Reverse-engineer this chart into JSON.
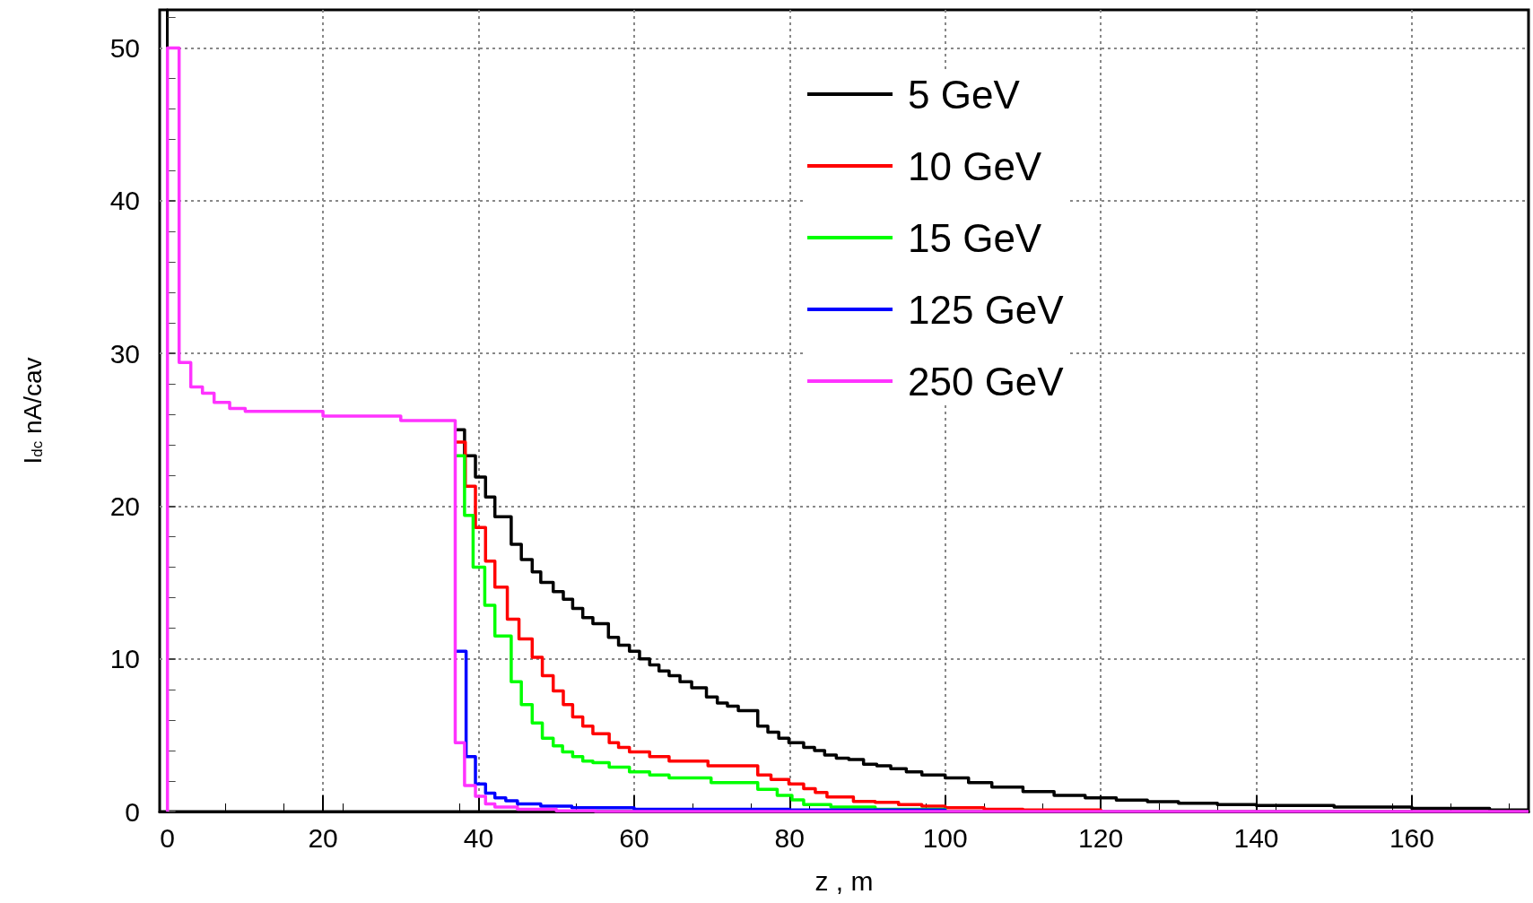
{
  "chart_data": {
    "type": "step",
    "xlabel": "z , m",
    "ylabel": "I$_{dc}$ nA/cav",
    "xlim": [
      -1,
      175
    ],
    "ylim": [
      0,
      52.5
    ],
    "xticks": [
      0,
      20,
      40,
      60,
      80,
      100,
      120,
      140,
      160
    ],
    "yticks": [
      0,
      10,
      20,
      30,
      40,
      50
    ],
    "grid": true,
    "legend": "top right",
    "series": [
      {
        "name": "5 GeV",
        "color": "#000000",
        "x": [
          37,
          38.2,
          39.6,
          40.9,
          42.1,
          44.2,
          45.5,
          46.9,
          48,
          49.6,
          50.9,
          52.1,
          53.4,
          54.7,
          56.7,
          58,
          59.4,
          60.7,
          62,
          63.2,
          64.5,
          65.9,
          67.4,
          69.3,
          70.7,
          72,
          73.4,
          75.9,
          77.2,
          78.6,
          79.9,
          81.8,
          83.2,
          84.5,
          86,
          87.6,
          89.5,
          91.2,
          93,
          95,
          97,
          100,
          103,
          106,
          110,
          114,
          118,
          122,
          126,
          130,
          135,
          140,
          150,
          160,
          170,
          175
        ],
        "values": [
          25,
          23.3,
          21.9,
          20.6,
          19.3,
          17.5,
          16.5,
          15.7,
          15,
          14.4,
          13.9,
          13.3,
          12.7,
          12.3,
          11.4,
          10.9,
          10.5,
          10,
          9.6,
          9.2,
          8.9,
          8.5,
          8.1,
          7.5,
          7.1,
          6.9,
          6.6,
          5.6,
          5.2,
          4.8,
          4.5,
          4.2,
          4,
          3.7,
          3.5,
          3.4,
          3.1,
          3,
          2.8,
          2.6,
          2.4,
          2.2,
          1.9,
          1.6,
          1.3,
          1.05,
          0.9,
          0.75,
          0.65,
          0.55,
          0.45,
          0.4,
          0.3,
          0.2,
          0.1,
          0.1
        ]
      },
      {
        "name": "10 GeV",
        "color": "#ff0000",
        "x": [
          37,
          38.3,
          39.6,
          40.9,
          42.1,
          43.7,
          45.2,
          46.9,
          48.2,
          49.6,
          50.9,
          52.1,
          53.4,
          54.7,
          56.8,
          58,
          59.4,
          62,
          64.5,
          69.5,
          75.9,
          77.6,
          79.9,
          81.8,
          83.3,
          84.8,
          88.2,
          91,
          94,
          97,
          100,
          105,
          110,
          120
        ],
        "values": [
          24.2,
          21.3,
          18.6,
          16.4,
          14.7,
          12.6,
          11.3,
          10.1,
          8.9,
          7.9,
          7,
          6.2,
          5.6,
          5.1,
          4.5,
          4.2,
          3.9,
          3.6,
          3.3,
          3,
          2.4,
          2.1,
          1.8,
          1.5,
          1.25,
          0.95,
          0.66,
          0.6,
          0.45,
          0.35,
          0.25,
          0.15,
          0.1,
          0.05
        ]
      },
      {
        "name": "15 GeV",
        "color": "#00ff00",
        "x": [
          37,
          38.2,
          39.3,
          40.8,
          42.1,
          44.2,
          45.5,
          46.9,
          48.2,
          49.6,
          50.8,
          52.1,
          53.4,
          54.7,
          56.8,
          59.4,
          62,
          64.5,
          69.9,
          75.9,
          78.4,
          80.3,
          81.8,
          85.3,
          91,
          100
        ],
        "values": [
          23.3,
          19.4,
          16,
          13.5,
          11.5,
          8.5,
          7,
          5.8,
          4.8,
          4.3,
          3.9,
          3.6,
          3.3,
          3.2,
          2.9,
          2.6,
          2.4,
          2.2,
          1.9,
          1.45,
          1.05,
          0.76,
          0.46,
          0.3,
          0.15,
          0.05
        ]
      },
      {
        "name": "125 GeV",
        "color": "#0000ff",
        "x": [
          37,
          38.4,
          39.6,
          40.9,
          42.1,
          43.5,
          45,
          48,
          52,
          60,
          80,
          100
        ],
        "values": [
          10.5,
          3.6,
          1.8,
          1.2,
          0.9,
          0.7,
          0.5,
          0.35,
          0.25,
          0.15,
          0.1,
          0.05
        ]
      },
      {
        "name": "250 GeV",
        "color": "#ff33ff",
        "x": [
          0,
          0,
          1.5,
          3,
          4.5,
          6,
          8,
          10,
          20,
          30,
          37,
          38.2,
          39.6,
          40.9,
          42.1,
          45,
          50,
          55,
          175
        ],
        "values": [
          0,
          50,
          29.4,
          27.8,
          27.4,
          26.8,
          26.4,
          26.2,
          25.9,
          25.6,
          4.5,
          1.7,
          1,
          0.5,
          0.3,
          0.15,
          0.05,
          0,
          0
        ]
      }
    ]
  }
}
